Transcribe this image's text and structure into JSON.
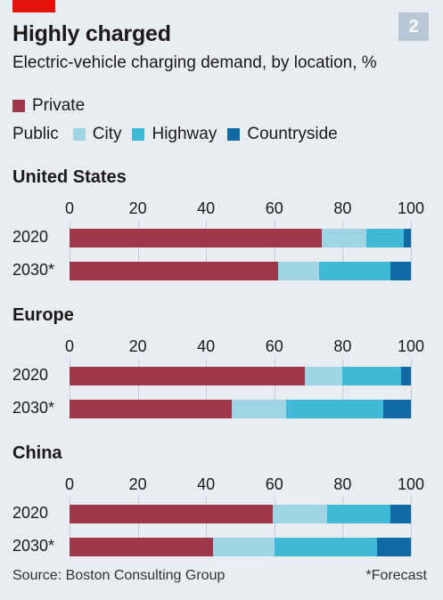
{
  "header": {
    "badge": "2",
    "title": "Highly charged",
    "subtitle": "Electric-vehicle charging demand, by location, %"
  },
  "legend": {
    "private_label": "Private",
    "public_label": "Public",
    "city_label": "City",
    "highway_label": "Highway",
    "countryside_label": "Countryside"
  },
  "colors": {
    "private": "#a0364a",
    "city": "#9ed4e4",
    "highway": "#3fb9d6",
    "countryside": "#106aa3",
    "accent": "#e3120b"
  },
  "footer": {
    "source": "Source: Boston Consulting Group",
    "note": "*Forecast"
  },
  "chart_data": {
    "type": "bar",
    "orientation": "horizontal",
    "stacked": true,
    "xlim": [
      0,
      100
    ],
    "ticks": [
      "0",
      "20",
      "40",
      "60",
      "80",
      "100"
    ],
    "series_names": [
      "Private",
      "City",
      "Highway",
      "Countryside"
    ],
    "groups": [
      {
        "name": "United States",
        "rows": [
          {
            "label": "2020",
            "values": [
              74,
              13,
              11,
              2
            ]
          },
          {
            "label": "2030*",
            "values": [
              61,
              12,
              21,
              6
            ]
          }
        ]
      },
      {
        "name": "Europe",
        "rows": [
          {
            "label": "2020",
            "values": [
              69,
              11,
              17,
              3
            ]
          },
          {
            "label": "2030*",
            "values": [
              47.5,
              16,
              28.5,
              8
            ]
          }
        ]
      },
      {
        "name": "China",
        "rows": [
          {
            "label": "2020",
            "values": [
              59.5,
              16,
              18.5,
              6
            ]
          },
          {
            "label": "2030*",
            "values": [
              42,
              18,
              30,
              10
            ]
          }
        ]
      }
    ]
  }
}
